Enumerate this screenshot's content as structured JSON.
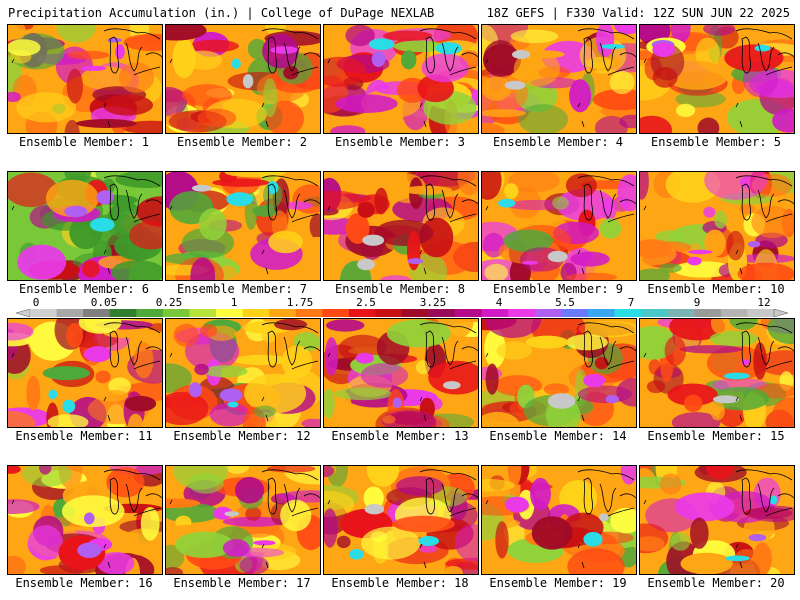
{
  "header": {
    "title": "Precipitation Accumulation (in.) | College of DuPage NEXLAB",
    "run_info": "18Z GEFS | F330 Valid: 12Z SUN JUN 22 2025"
  },
  "panels": [
    {
      "label": "Ensemble Member: 1"
    },
    {
      "label": "Ensemble Member: 2"
    },
    {
      "label": "Ensemble Member: 3"
    },
    {
      "label": "Ensemble Member: 4"
    },
    {
      "label": "Ensemble Member: 5"
    },
    {
      "label": "Ensemble Member: 6"
    },
    {
      "label": "Ensemble Member: 7"
    },
    {
      "label": "Ensemble Member: 8"
    },
    {
      "label": "Ensemble Member: 9"
    },
    {
      "label": "Ensemble Member: 10"
    },
    {
      "label": "Ensemble Member: 11"
    },
    {
      "label": "Ensemble Member: 12"
    },
    {
      "label": "Ensemble Member: 13"
    },
    {
      "label": "Ensemble Member: 14"
    },
    {
      "label": "Ensemble Member: 15"
    },
    {
      "label": "Ensemble Member: 16"
    },
    {
      "label": "Ensemble Member: 17"
    },
    {
      "label": "Ensemble Member: 18"
    },
    {
      "label": "Ensemble Member: 19"
    },
    {
      "label": "Ensemble Member: 20"
    }
  ],
  "colorbar": {
    "tick_labels": [
      "0",
      "0.05",
      "0.25",
      "1",
      "1.75",
      "2.5",
      "3.25",
      "4",
      "5.5",
      "7",
      "9",
      "12"
    ],
    "colors": [
      "#cfcfcf",
      "#a8a8a8",
      "#7f7f7f",
      "#2f7f2f",
      "#4ea93a",
      "#79c83a",
      "#b6e33a",
      "#ffff40",
      "#ffd21a",
      "#ffa614",
      "#ff7a14",
      "#ff4a14",
      "#e8141a",
      "#c80f14",
      "#a00a28",
      "#9a0a5a",
      "#b40a8a",
      "#d21ac8",
      "#ea3ae8",
      "#b060f0",
      "#6a7afa",
      "#3aa8f0",
      "#2adce6",
      "#4ac8c8",
      "#7ab4b4",
      "#9a9a9a",
      "#b4b4b4",
      "#c8c8c8"
    ]
  },
  "legend_colors": {
    "dry_green": "#3f9a2a",
    "light_yellow": "#ffff40",
    "orange": "#ffa614",
    "red": "#e8141a",
    "magenta": "#d21ac8",
    "cyan": "#2adce6",
    "gray_extreme": "#b4b4b4"
  }
}
